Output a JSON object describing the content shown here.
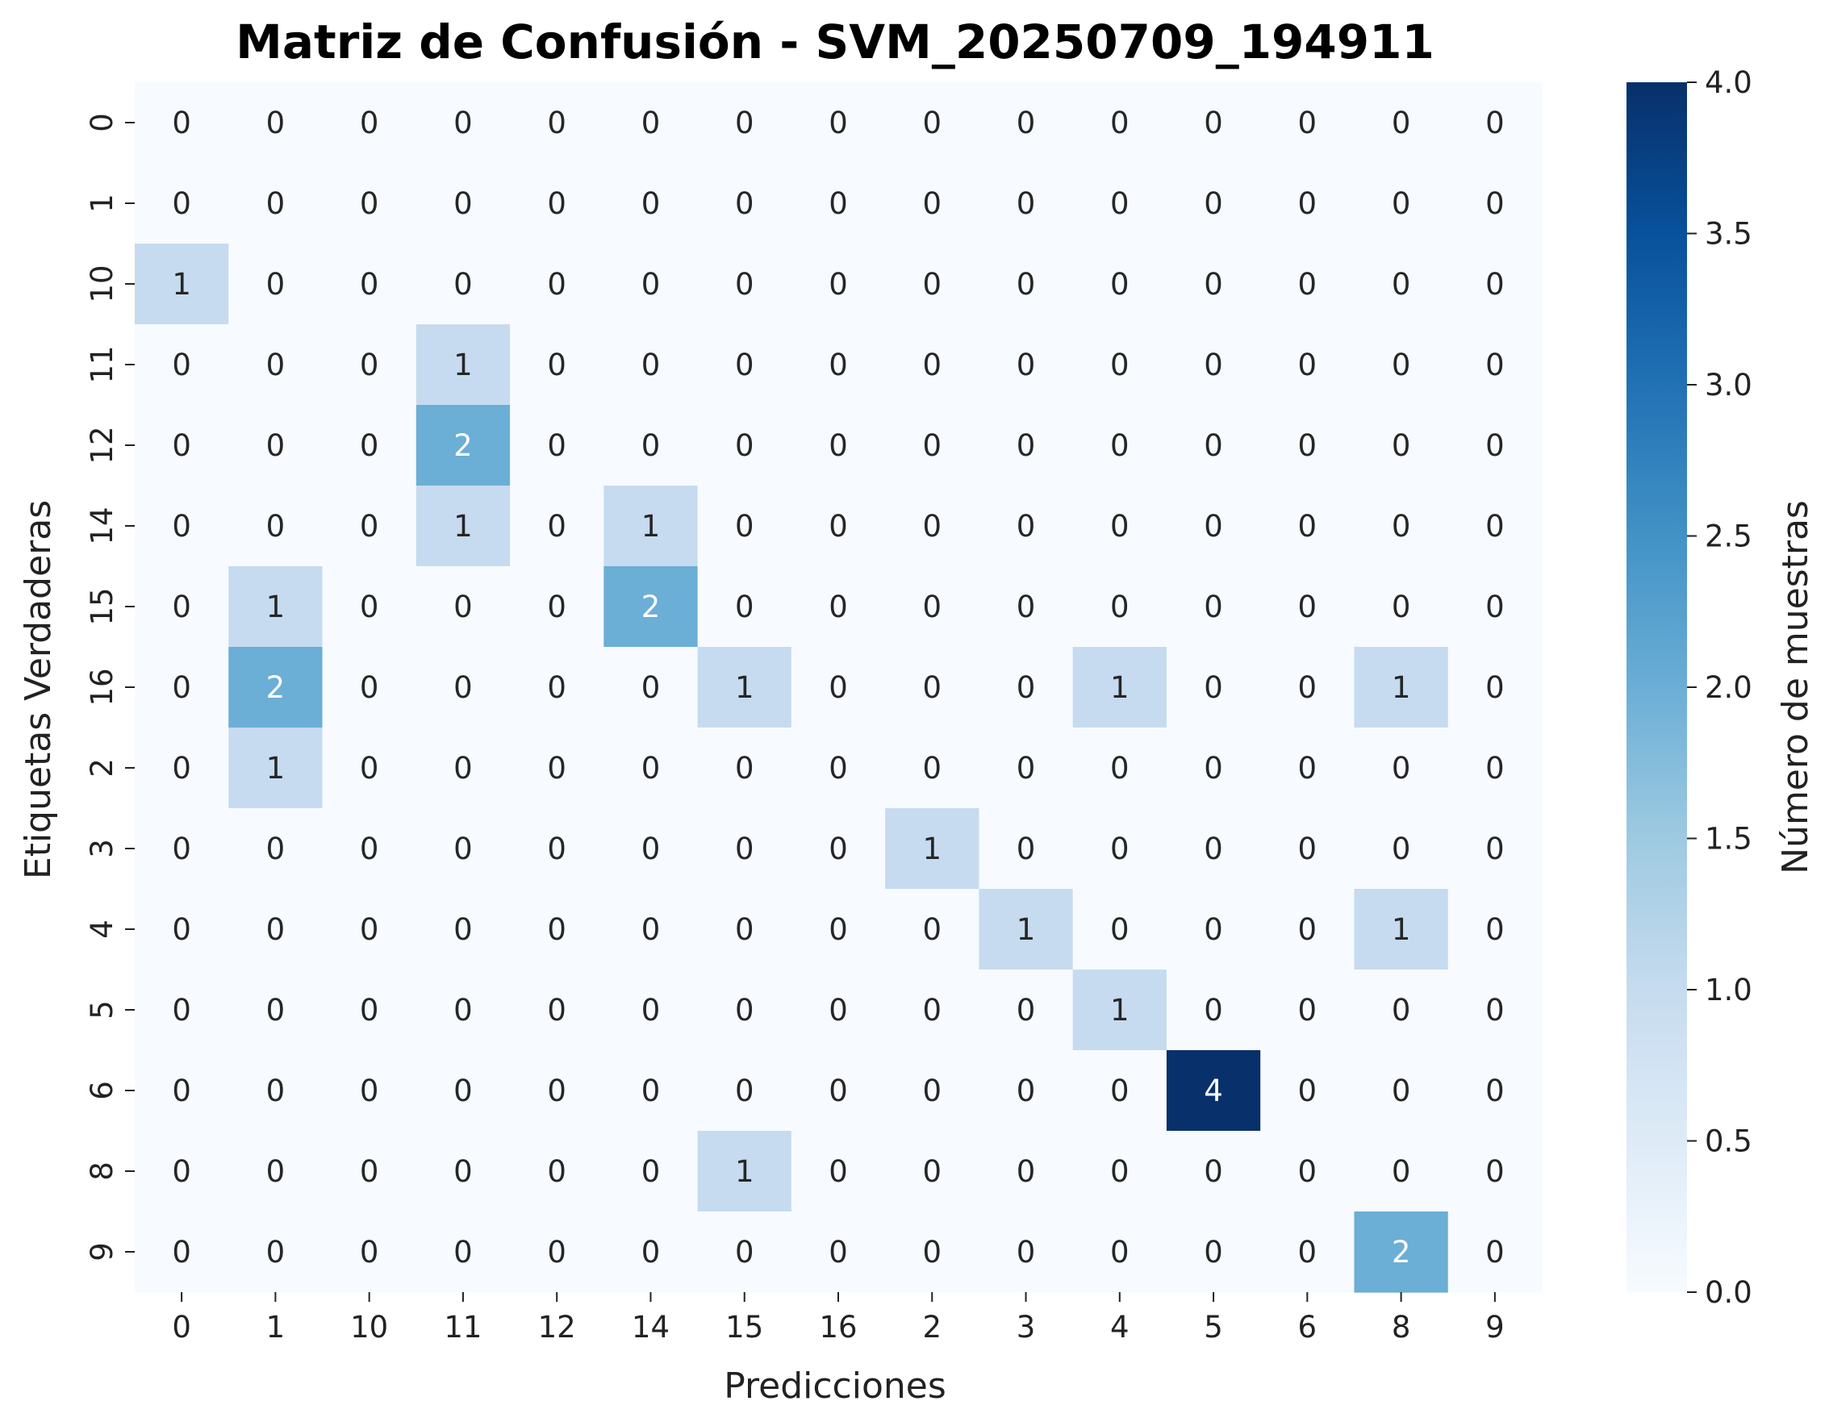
{
  "chart_data": {
    "type": "heatmap",
    "title": "Matriz de Confusión - SVM_20250709_194911",
    "xlabel": "Predicciones",
    "ylabel": "Etiquetas Verdaderas",
    "x_categories": [
      "0",
      "1",
      "10",
      "11",
      "12",
      "14",
      "15",
      "16",
      "2",
      "3",
      "4",
      "5",
      "6",
      "8",
      "9"
    ],
    "y_categories": [
      "0",
      "1",
      "10",
      "11",
      "12",
      "14",
      "15",
      "16",
      "2",
      "3",
      "4",
      "5",
      "6",
      "8",
      "9"
    ],
    "values": [
      [
        0,
        0,
        0,
        0,
        0,
        0,
        0,
        0,
        0,
        0,
        0,
        0,
        0,
        0,
        0
      ],
      [
        0,
        0,
        0,
        0,
        0,
        0,
        0,
        0,
        0,
        0,
        0,
        0,
        0,
        0,
        0
      ],
      [
        1,
        0,
        0,
        0,
        0,
        0,
        0,
        0,
        0,
        0,
        0,
        0,
        0,
        0,
        0
      ],
      [
        0,
        0,
        0,
        1,
        0,
        0,
        0,
        0,
        0,
        0,
        0,
        0,
        0,
        0,
        0
      ],
      [
        0,
        0,
        0,
        2,
        0,
        0,
        0,
        0,
        0,
        0,
        0,
        0,
        0,
        0,
        0
      ],
      [
        0,
        0,
        0,
        1,
        0,
        1,
        0,
        0,
        0,
        0,
        0,
        0,
        0,
        0,
        0
      ],
      [
        0,
        1,
        0,
        0,
        0,
        2,
        0,
        0,
        0,
        0,
        0,
        0,
        0,
        0,
        0
      ],
      [
        0,
        2,
        0,
        0,
        0,
        0,
        1,
        0,
        0,
        0,
        1,
        0,
        0,
        1,
        0
      ],
      [
        0,
        1,
        0,
        0,
        0,
        0,
        0,
        0,
        0,
        0,
        0,
        0,
        0,
        0,
        0
      ],
      [
        0,
        0,
        0,
        0,
        0,
        0,
        0,
        0,
        1,
        0,
        0,
        0,
        0,
        0,
        0
      ],
      [
        0,
        0,
        0,
        0,
        0,
        0,
        0,
        0,
        0,
        1,
        0,
        0,
        0,
        1,
        0
      ],
      [
        0,
        0,
        0,
        0,
        0,
        0,
        0,
        0,
        0,
        0,
        1,
        0,
        0,
        0,
        0
      ],
      [
        0,
        0,
        0,
        0,
        0,
        0,
        0,
        0,
        0,
        0,
        0,
        4,
        0,
        0,
        0
      ],
      [
        0,
        0,
        0,
        0,
        0,
        0,
        1,
        0,
        0,
        0,
        0,
        0,
        0,
        0,
        0
      ],
      [
        0,
        0,
        0,
        0,
        0,
        0,
        0,
        0,
        0,
        0,
        0,
        0,
        0,
        2,
        0
      ]
    ],
    "colorbar": {
      "label": "Número de muestras",
      "range": [
        0,
        4
      ],
      "ticks": [
        "0.0",
        "0.5",
        "1.0",
        "1.5",
        "2.0",
        "2.5",
        "3.0",
        "3.5",
        "4.0"
      ],
      "colormap": "Blues",
      "low_color": "#f7fbff",
      "high_color": "#08306b"
    },
    "grid": false
  }
}
